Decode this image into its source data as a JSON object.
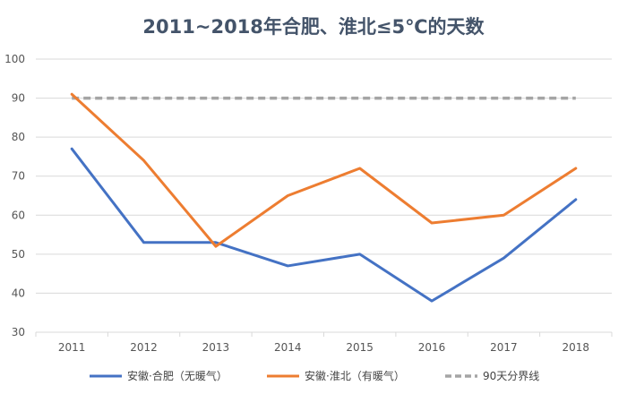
{
  "chart_data": {
    "type": "line",
    "title": "2011~2018年合肥、淮北≤5℃的天数",
    "xlabel": "",
    "ylabel": "",
    "categories": [
      "2011",
      "2012",
      "2013",
      "2014",
      "2015",
      "2016",
      "2017",
      "2018"
    ],
    "ylim": [
      30,
      100
    ],
    "yticks": [
      30,
      40,
      50,
      60,
      70,
      80,
      90,
      100
    ],
    "grid": true,
    "legend_position": "bottom",
    "series": [
      {
        "name": "安徽·合肥（无暖气）",
        "color": "#4472c4",
        "style": "solid",
        "values": [
          77,
          53,
          53,
          47,
          50,
          38,
          49,
          64
        ]
      },
      {
        "name": "安徽·淮北（有暖气）",
        "color": "#ed7d31",
        "style": "solid",
        "values": [
          91,
          74,
          52,
          65,
          72,
          58,
          60,
          72
        ]
      },
      {
        "name": "90天分界线",
        "color": "#a5a5a5",
        "style": "dashed",
        "values": [
          90,
          90,
          90,
          90,
          90,
          90,
          90,
          90
        ]
      }
    ]
  }
}
